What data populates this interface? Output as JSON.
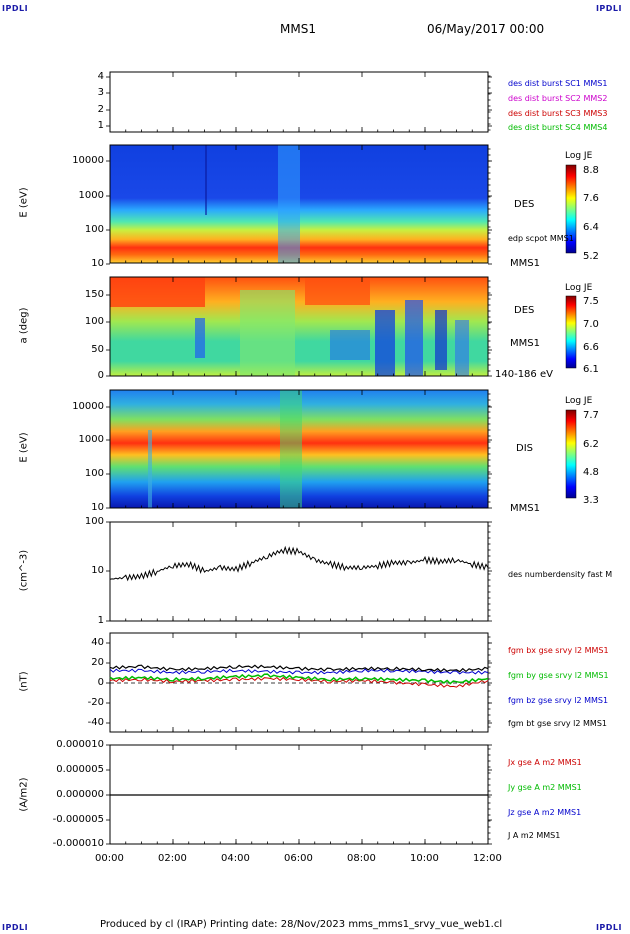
{
  "corners": {
    "tl": "IPDLI",
    "tr": "IPDLI",
    "bl": "IPDLI",
    "br": "IPDLI"
  },
  "header": {
    "spacecraft": "MMS1",
    "datetime": "06/May/2017 00:00"
  },
  "footer": {
    "text": "Produced by cl (IRAP)   Printing date: 28/Nov/2023   mms_mms1_srvy_vue_web1.cl"
  },
  "colors": {
    "mms1": "#0000cc",
    "mms2": "#cc00cc",
    "mms3": "#cc0000",
    "mms4": "#00bb00",
    "bt": "#000000"
  },
  "chart_data": [
    {
      "type": "scatter",
      "panel": "burst-indicator",
      "yticks": [
        "4",
        "3",
        "2",
        "1"
      ],
      "legend": [
        "des dist burst SC1 MMS1",
        "des dist burst SC2 MMS2",
        "des dist burst SC3 MMS3",
        "des dist burst SC4 MMS4"
      ]
    },
    {
      "type": "heatmap",
      "panel": "des-energy",
      "ylabel": "E (eV)",
      "yscale": "log",
      "yticks": [
        "10000",
        "1000",
        "100",
        "10"
      ],
      "instrument": "DES",
      "spacecraft": "MMS1",
      "overlay_label": "edp scpot MMS1",
      "colorbar": {
        "title": "Log JE",
        "ticks": [
          "8.8",
          "7.6",
          "6.4",
          "5.2"
        ]
      }
    },
    {
      "type": "heatmap",
      "panel": "des-pitch-angle",
      "ylabel": "a (deg)",
      "yticks": [
        "150",
        "100",
        "50",
        "0"
      ],
      "ylim": [
        0,
        180
      ],
      "instrument": "DES",
      "spacecraft": "MMS1",
      "energy_range": "140-186 eV",
      "colorbar": {
        "title": "Log JE",
        "ticks": [
          "7.5",
          "7.0",
          "6.6",
          "6.1"
        ]
      }
    },
    {
      "type": "heatmap",
      "panel": "dis-energy",
      "ylabel": "E (eV)",
      "yscale": "log",
      "yticks": [
        "10000",
        "1000",
        "100",
        "10"
      ],
      "instrument": "DIS",
      "spacecraft": "MMS1",
      "colorbar": {
        "title": "Log JE",
        "ticks": [
          "7.7",
          "6.2",
          "4.8",
          "3.3"
        ]
      }
    },
    {
      "type": "line",
      "panel": "density",
      "ylabel": "(cm^-3)",
      "yscale": "log",
      "yticks": [
        "100",
        "10",
        "1"
      ],
      "ylim": [
        1,
        100
      ],
      "series": [
        {
          "name": "des numberdensity fast M",
          "x": [
            0,
            0.5,
            1,
            1.5,
            2,
            2.5,
            3,
            3.5,
            4,
            4.5,
            5,
            5.5,
            6,
            6.5,
            7,
            7.5,
            8,
            8.5,
            9,
            9.5,
            10,
            10.5,
            11,
            11.5,
            12
          ],
          "y": [
            7,
            7.5,
            8,
            10,
            13,
            14,
            10,
            12,
            11,
            15,
            20,
            27,
            25,
            17,
            14,
            12,
            12,
            13,
            15,
            15,
            17,
            16,
            17,
            14,
            12
          ]
        }
      ]
    },
    {
      "type": "line",
      "panel": "magnetic-field",
      "ylabel": "(nT)",
      "yticks": [
        "40",
        "20",
        "0",
        "-20",
        "-40"
      ],
      "ylim": [
        -50,
        50
      ],
      "series": [
        {
          "name": "fgm bx gse srvy l2 MMS1",
          "x": [
            0,
            1,
            2,
            3,
            4,
            5,
            6,
            7,
            8,
            9,
            10,
            11,
            12
          ],
          "y": [
            2,
            3,
            1,
            2,
            3,
            4,
            3,
            1,
            2,
            0,
            -2,
            -4,
            2
          ]
        },
        {
          "name": "fgm by gse srvy l2 MMS1",
          "x": [
            0,
            1,
            2,
            3,
            4,
            5,
            6,
            7,
            8,
            9,
            10,
            11,
            12
          ],
          "y": [
            4,
            5,
            3,
            4,
            6,
            7,
            5,
            3,
            4,
            3,
            2,
            0,
            4
          ]
        },
        {
          "name": "fgm bz gse srvy l2 MMS1",
          "x": [
            0,
            1,
            2,
            3,
            4,
            5,
            6,
            7,
            8,
            9,
            10,
            11,
            12
          ],
          "y": [
            12,
            12,
            10,
            11,
            12,
            11,
            10,
            10,
            12,
            12,
            11,
            10,
            10
          ]
        },
        {
          "name": "fgm bt gse srvy l2 MMS1",
          "x": [
            0,
            1,
            2,
            3,
            4,
            5,
            6,
            7,
            8,
            9,
            10,
            11,
            12
          ],
          "y": [
            15,
            16,
            13,
            14,
            16,
            16,
            14,
            13,
            14,
            14,
            13,
            12,
            14
          ]
        }
      ]
    },
    {
      "type": "line",
      "panel": "current-density",
      "ylabel": "(A/m2)",
      "yticks": [
        "0.000010",
        "0.000005",
        "0.000000",
        "-0.000005",
        "-0.000010"
      ],
      "ylim": [
        -1e-05,
        1e-05
      ],
      "xticks": [
        "00:00",
        "02:00",
        "04:00",
        "06:00",
        "08:00",
        "10:00",
        "12:00"
      ],
      "series": [
        {
          "name": "Jx gse A m2 MMS1",
          "x": [
            0,
            12
          ],
          "y": [
            0,
            0
          ]
        },
        {
          "name": "Jy gse A m2 MMS1",
          "x": [
            0,
            12
          ],
          "y": [
            0,
            0
          ]
        },
        {
          "name": "Jz gse A m2 MMS1",
          "x": [
            0,
            12
          ],
          "y": [
            0,
            0
          ]
        },
        {
          "name": "J A m2 MMS1",
          "x": [
            0,
            12
          ],
          "y": [
            0,
            0
          ]
        }
      ]
    }
  ]
}
